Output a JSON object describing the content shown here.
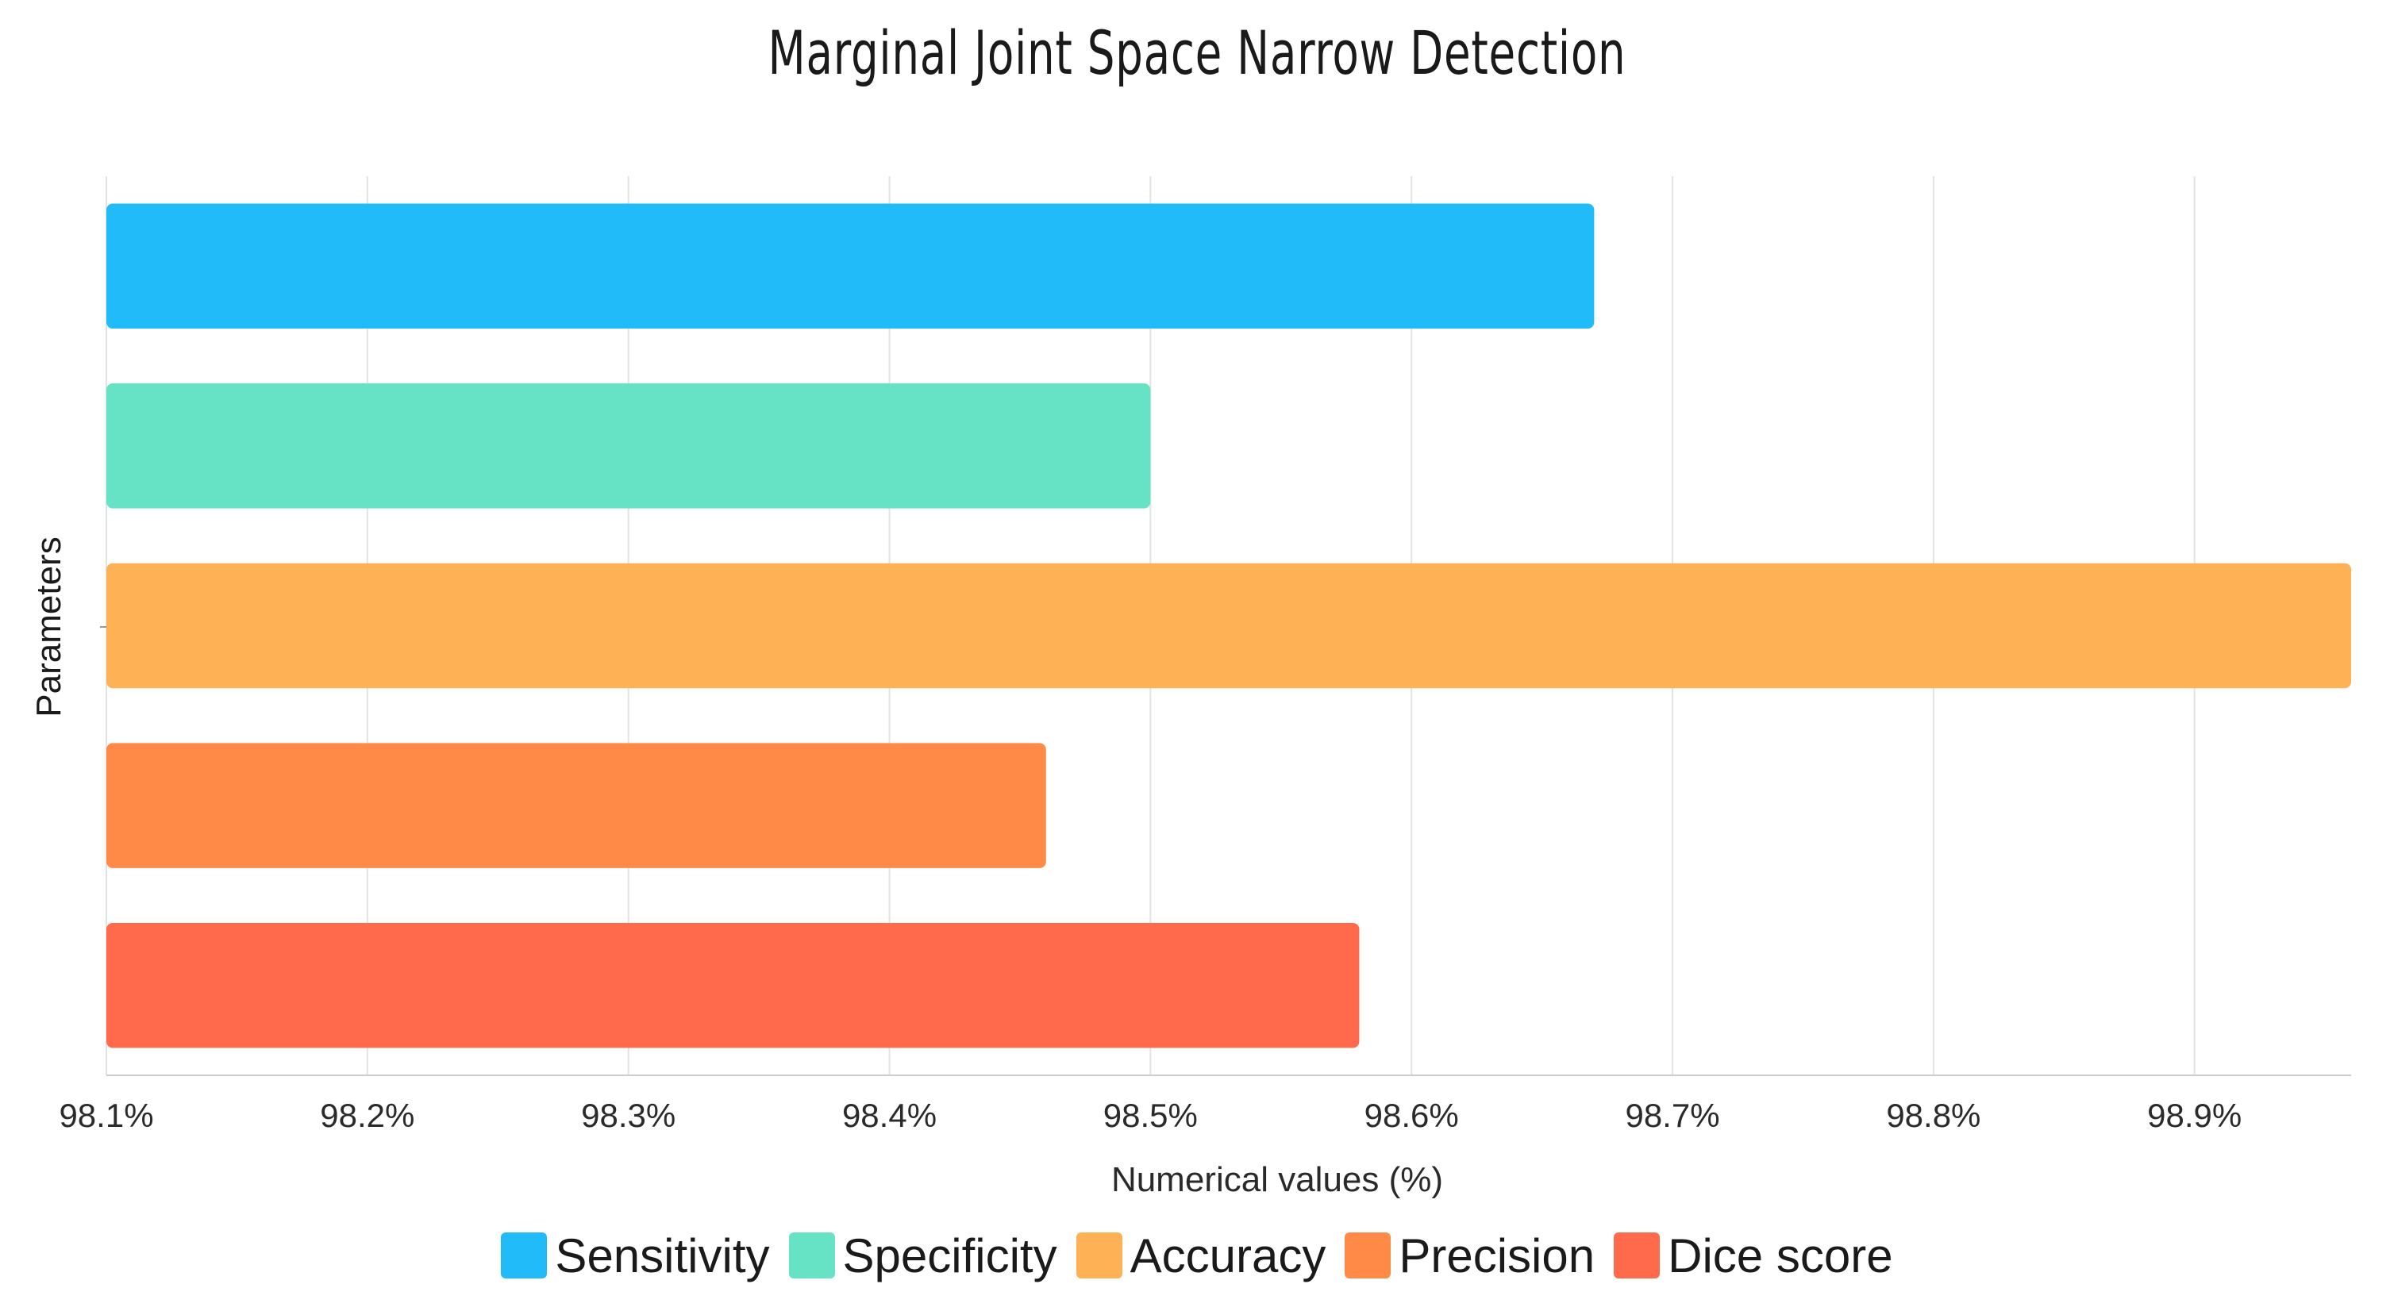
{
  "chart_data": {
    "type": "bar",
    "orientation": "horizontal",
    "title": "Marginal Joint Space Narrow Detection",
    "xlabel": "Numerical values (%)",
    "ylabel": "Parameters",
    "xlim": [
      98.1,
      98.96
    ],
    "x_ticks": [
      "98.1%",
      "98.2%",
      "98.3%",
      "98.4%",
      "98.5%",
      "98.6%",
      "98.7%",
      "98.8%",
      "98.9%"
    ],
    "x_tick_values": [
      98.1,
      98.2,
      98.3,
      98.4,
      98.5,
      98.6,
      98.7,
      98.8,
      98.9
    ],
    "grid": true,
    "legend_position": "bottom",
    "series": [
      {
        "name": "Sensitivity",
        "value": 98.67,
        "color": "#22BBF9"
      },
      {
        "name": "Specificity",
        "value": 98.5,
        "color": "#66E3C4"
      },
      {
        "name": "Accuracy",
        "value": 98.96,
        "color": "#FFB155"
      },
      {
        "name": "Precision",
        "value": 98.46,
        "color": "#FF8A48"
      },
      {
        "name": "Dice score",
        "value": 98.58,
        "color": "#FF6A4D"
      }
    ]
  }
}
